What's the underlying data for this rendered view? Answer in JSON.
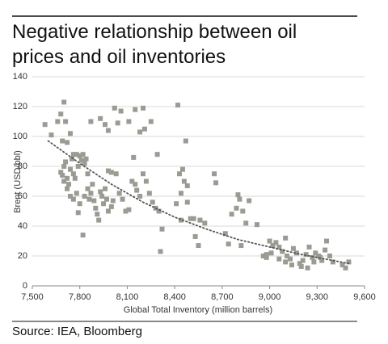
{
  "chart_data": {
    "type": "scatter",
    "title": "Negative relationship between oil prices and oil inventories",
    "source": "Source: IEA, Bloomberg",
    "x_label": "Global Total Inventory (million barrels)",
    "y_label": "Brent (USD/bbl)",
    "color": "#9b9b93",
    "trend_color": "#555555",
    "grid": true,
    "xlim": [
      7500,
      9600
    ],
    "ylim": [
      0,
      140
    ],
    "xticks": [
      {
        "value": 7500,
        "label": "7,500"
      },
      {
        "value": 7800,
        "label": "7,800"
      },
      {
        "value": 8100,
        "label": "8,100"
      },
      {
        "value": 8400,
        "label": "8,400"
      },
      {
        "value": 8700,
        "label": "8,700"
      },
      {
        "value": 9000,
        "label": "9,000"
      },
      {
        "value": 9300,
        "label": "9,300"
      },
      {
        "value": 9600,
        "label": "9,600"
      }
    ],
    "yticks": [
      0,
      20,
      40,
      60,
      80,
      100,
      120,
      140
    ],
    "x": [
      7580,
      7620,
      7660,
      7680,
      7700,
      7710,
      7690,
      7720,
      7740,
      7760,
      7680,
      7690,
      7700,
      7710,
      7720,
      7730,
      7740,
      7750,
      7760,
      7770,
      7780,
      7790,
      7800,
      7810,
      7820,
      7830,
      7840,
      7850,
      7700,
      7720,
      7740,
      7760,
      7780,
      7800,
      7790,
      7820,
      7830,
      7850,
      7860,
      7870,
      7880,
      7890,
      7900,
      7910,
      7920,
      7930,
      7940,
      7950,
      7960,
      7970,
      7980,
      8000,
      8010,
      7980,
      8000,
      8030,
      8050,
      8070,
      8090,
      8110,
      8130,
      8150,
      8160,
      8180,
      8200,
      8220,
      8240,
      8260,
      8280,
      8300,
      8320,
      8310,
      8290,
      8140,
      8210,
      7870,
      7930,
      7960,
      8020,
      8060,
      8110,
      8150,
      8200,
      8250,
      8180,
      8040,
      7980,
      8420,
      8470,
      8430,
      8450,
      8460,
      8440,
      8480,
      8410,
      8480,
      8520,
      8560,
      8590,
      8440,
      8500,
      8530,
      8550,
      8650,
      8660,
      8720,
      8740,
      8760,
      8790,
      8800,
      8810,
      8830,
      8870,
      8850,
      8820,
      8920,
      8960,
      8980,
      9000,
      9010,
      9020,
      9040,
      9060,
      9080,
      9100,
      9110,
      9130,
      9150,
      9170,
      9190,
      9210,
      9230,
      9250,
      9270,
      9290,
      9310,
      9330,
      9350,
      9360,
      9380,
      9400,
      9460,
      9480,
      9500,
      9100,
      9140,
      9200,
      9240,
      9280,
      9320,
      9060,
      8980
    ],
    "values": [
      108,
      101,
      110,
      115,
      123,
      110,
      97,
      96,
      102,
      88,
      76,
      74,
      80,
      83,
      72,
      68,
      78,
      85,
      75,
      72,
      88,
      80,
      87,
      84,
      88,
      82,
      85,
      75,
      70,
      65,
      60,
      58,
      62,
      55,
      49,
      34,
      60,
      65,
      58,
      62,
      68,
      57,
      52,
      48,
      44,
      63,
      60,
      55,
      65,
      58,
      50,
      53,
      57,
      77,
      76,
      75,
      62,
      58,
      50,
      51,
      70,
      68,
      64,
      60,
      75,
      70,
      62,
      56,
      52,
      50,
      38,
      23,
      88,
      86,
      105,
      110,
      112,
      108,
      119,
      117,
      110,
      118,
      119,
      110,
      103,
      109,
      104,
      121,
      97,
      75,
      78,
      70,
      62,
      67,
      55,
      56,
      45,
      44,
      42,
      44,
      45,
      33,
      27,
      75,
      69,
      35,
      28,
      48,
      52,
      61,
      58,
      50,
      57,
      42,
      27,
      41,
      20,
      19,
      30,
      22,
      27,
      29,
      26,
      23,
      32,
      20,
      18,
      25,
      22,
      15,
      17,
      21,
      26,
      19,
      22,
      20,
      17,
      24,
      30,
      20,
      16,
      14,
      12,
      16,
      16,
      14,
      13,
      12,
      16,
      19,
      18,
      21
    ],
    "trendline": {
      "x": [
        7600,
        7800,
        8000,
        8200,
        8400,
        8600,
        8800,
        9000,
        9200,
        9400,
        9500
      ],
      "values": [
        97,
        82,
        68,
        56,
        46,
        38,
        31,
        26,
        21,
        17,
        15
      ]
    }
  }
}
